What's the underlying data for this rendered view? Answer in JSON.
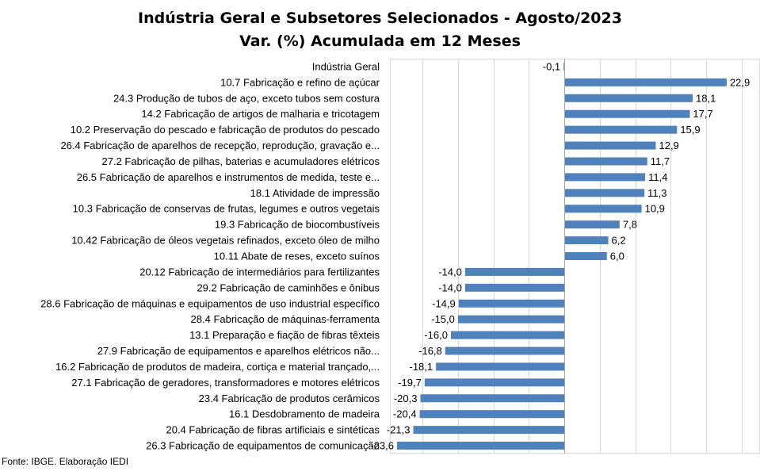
{
  "chart_data": {
    "type": "bar",
    "orientation": "horizontal",
    "title": "Indústria Geral e Subsetores Selecionados - Agosto/2023",
    "subtitle": "Var. (%) Acumulada em 12 Meses",
    "source": "Fonte: IBGE. Elaboração IEDI",
    "bar_color": "#4f81bd",
    "grid": "vertical lines",
    "categories": [
      "Indústria Geral",
      "10.7 Fabricação e refino de açúcar",
      "24.3 Produção de tubos de aço, exceto tubos sem costura",
      "14.2 Fabricação de artigos de malharia e tricotagem",
      "10.2 Preservação do pescado e fabricação de produtos do pescado",
      "26.4 Fabricação de aparelhos de recepção, reprodução, gravação e...",
      "27.2 Fabricação de pilhas, baterias e acumuladores elétricos",
      "26.5 Fabricação de aparelhos e instrumentos de medida, teste e...",
      "18.1 Atividade de impressão",
      "10.3 Fabricação de conservas de frutas, legumes e outros vegetais",
      "19.3 Fabricação de biocombustíveis",
      "10.42 Fabricação de óleos vegetais refinados, exceto óleo de milho",
      "10.11 Abate de reses, exceto suínos",
      "20.12 Fabricação de intermediários para fertilizantes",
      "29.2 Fabricação de caminhões e ônibus",
      "28.6 Fabricação de máquinas e equipamentos de uso industrial específico",
      "28.4 Fabricação de máquinas-ferramenta",
      "13.1 Preparação e fiação de fibras têxteis",
      "27.9 Fabricação de equipamentos e aparelhos elétricos não...",
      "16.2 Fabricação de produtos de madeira, cortiça e material trançado,...",
      "27.1 Fabricação de geradores, transformadores e motores elétricos",
      "23.4 Fabricação de produtos cerâmicos",
      "16.1 Desdobramento de madeira",
      "20.4 Fabricação de fibras artificiais e sintéticas",
      "26.3 Fabricação de equipamentos de comunicação"
    ],
    "values": [
      -0.1,
      22.9,
      18.1,
      17.7,
      15.9,
      12.9,
      11.7,
      11.4,
      11.3,
      10.9,
      7.8,
      6.2,
      6.0,
      -14.0,
      -14.0,
      -14.9,
      -15.0,
      -16.0,
      -16.8,
      -18.1,
      -19.7,
      -20.3,
      -20.4,
      -21.3,
      -23.6
    ],
    "value_labels": [
      "-0,1",
      "22,9",
      "18,1",
      "17,7",
      "15,9",
      "12,9",
      "11,7",
      "11,4",
      "11,3",
      "10,9",
      "7,8",
      "6,2",
      "6,0",
      "-14,0",
      "-14,0",
      "-14,9",
      "-15,0",
      "-16,0",
      "-16,8",
      "-18,1",
      "-19,7",
      "-20,3",
      "-20,4",
      "-21,3",
      "-23,6"
    ],
    "xlim": [
      -24.6,
      27.6
    ]
  }
}
